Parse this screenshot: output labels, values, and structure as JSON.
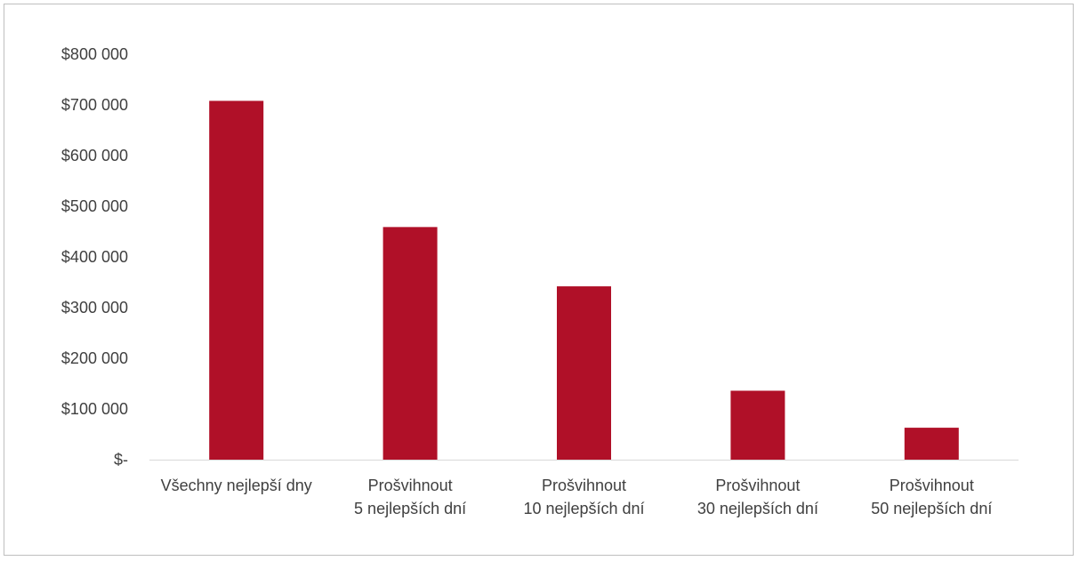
{
  "chart_data": {
    "type": "bar",
    "title": "",
    "xlabel": "",
    "ylabel": "",
    "categories": [
      [
        "Všechny nejlepší dny"
      ],
      [
        "Prošvihnout",
        "5 nejlepších dní"
      ],
      [
        "Prošvihnout",
        "10 nejlepších dní"
      ],
      [
        "Prošvihnout",
        "30 nejlepších dní"
      ],
      [
        "Prošvihnout",
        "50 nejlepších dní"
      ]
    ],
    "values": [
      708000,
      459000,
      342000,
      136000,
      63000
    ],
    "ylim": [
      0,
      800000
    ],
    "yticks": [
      0,
      100000,
      200000,
      300000,
      400000,
      500000,
      600000,
      700000,
      800000
    ],
    "ytick_labels": [
      "$-",
      "$100 000",
      "$200 000",
      "$300 000",
      "$400 000",
      "$500 000",
      "$600 000",
      "$700 000",
      "$800 000"
    ],
    "bar_color": "#b01028",
    "axis_color": "#d9d9d9",
    "grid": false,
    "legend": "none"
  }
}
